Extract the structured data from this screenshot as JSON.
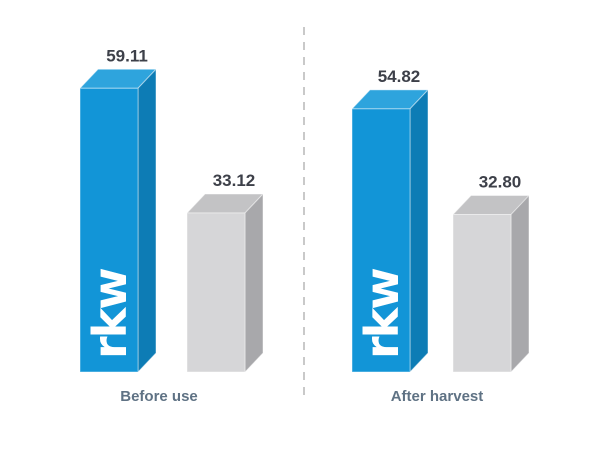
{
  "page": {
    "background": "#ffffff"
  },
  "chart_data": {
    "type": "bar",
    "style": "3d-column",
    "title": "",
    "xlabel": "",
    "ylabel": "",
    "ylim": [
      0,
      62
    ],
    "grid": false,
    "legend": "none",
    "categories": [
      "Before use",
      "After harvest"
    ],
    "groups": [
      {
        "label": "Before use",
        "bars": [
          {
            "series": "rkw",
            "value": 59.11,
            "display": "59.11"
          },
          {
            "series": "unlabeled-gray",
            "value": 33.12,
            "display": "33.12"
          }
        ]
      },
      {
        "label": "After harvest",
        "bars": [
          {
            "series": "rkw",
            "value": 54.82,
            "display": "54.82"
          },
          {
            "series": "unlabeled-gray",
            "value": 32.8,
            "display": "32.80"
          }
        ]
      }
    ],
    "series": [
      {
        "name": "rkw",
        "logo_text": "rkw",
        "colors": {
          "front": "#1295d7",
          "top": "#2ea4dd",
          "side": "#0d7cb5"
        }
      },
      {
        "name": "unlabeled-gray",
        "logo_text": "",
        "colors": {
          "front": "#d6d6d8",
          "top": "#c3c3c5",
          "side": "#a8a8ab"
        }
      }
    ],
    "separator": {
      "style": "dashed",
      "color": "#c9c9c9"
    },
    "value_label_color": "#3d4049",
    "category_label_color": "#5f7284",
    "logo_color": "#ffffff"
  }
}
